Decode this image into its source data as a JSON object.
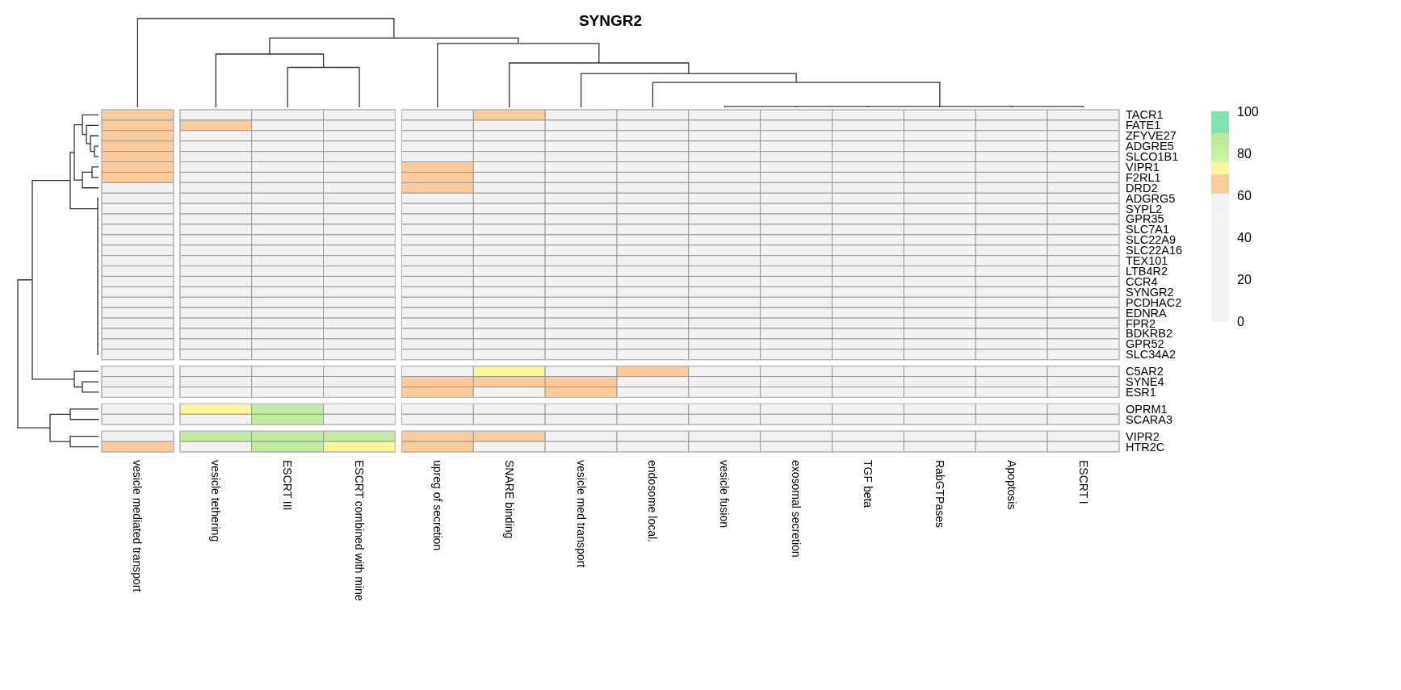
{
  "chart_data": {
    "type": "heatmap",
    "title": "SYNGR2",
    "categories": [
      "vesicle mediated transport",
      "vesicle tethering",
      "ESCRT III",
      "ESCRT combined with mine",
      "upreg of secretion",
      "SNARE binding",
      "vesicle med transport",
      "endosome local.",
      "vesicle fusion",
      "exosomal secretion",
      "TGF beta",
      "RabGTPases",
      "Apoptosis",
      "ESCRT I"
    ],
    "y_categories": [
      "TACR1",
      "FATE1",
      "ZFYVE27",
      "ADGRE5",
      "SLCO1B1",
      "VIPR1",
      "F2RL1",
      "DRD2",
      "ADGRG5",
      "SYPL2",
      "GPR35",
      "SLC7A1",
      "SLC22A9",
      "SLC22A16",
      "TEX101",
      "LTB4R2",
      "CCR4",
      "SYNGR2",
      "PCDHAC2",
      "EDNRA",
      "FPR2",
      "BDKRB2",
      "GPR52",
      "SLC34A2",
      "C5AR2",
      "SYNE4",
      "ESR1",
      "OPRM1",
      "SCARA3",
      "VIPR2",
      "HTR2C"
    ],
    "cells": [
      [
        65,
        null,
        null,
        null,
        null,
        65,
        null,
        null,
        null,
        null,
        null,
        null,
        null,
        null
      ],
      [
        65,
        65,
        null,
        null,
        null,
        null,
        null,
        null,
        null,
        null,
        null,
        null,
        null,
        null
      ],
      [
        65,
        null,
        null,
        null,
        null,
        null,
        null,
        null,
        null,
        null,
        null,
        null,
        null,
        null
      ],
      [
        65,
        null,
        null,
        null,
        null,
        null,
        null,
        null,
        null,
        null,
        null,
        null,
        null,
        null
      ],
      [
        65,
        null,
        null,
        null,
        null,
        null,
        null,
        null,
        null,
        null,
        null,
        null,
        null,
        null
      ],
      [
        65,
        null,
        null,
        null,
        65,
        null,
        null,
        null,
        null,
        null,
        null,
        null,
        null,
        null
      ],
      [
        65,
        null,
        null,
        null,
        65,
        null,
        null,
        null,
        null,
        null,
        null,
        null,
        null,
        null
      ],
      [
        null,
        null,
        null,
        null,
        65,
        null,
        null,
        null,
        null,
        null,
        null,
        null,
        null,
        null
      ],
      [
        null,
        null,
        null,
        null,
        null,
        null,
        null,
        null,
        null,
        null,
        null,
        null,
        null,
        null
      ],
      [
        null,
        null,
        null,
        null,
        null,
        null,
        null,
        null,
        null,
        null,
        null,
        null,
        null,
        null
      ],
      [
        null,
        null,
        null,
        null,
        null,
        null,
        null,
        null,
        null,
        null,
        null,
        null,
        null,
        null
      ],
      [
        null,
        null,
        null,
        null,
        null,
        null,
        null,
        null,
        null,
        null,
        null,
        null,
        null,
        null
      ],
      [
        null,
        null,
        null,
        null,
        null,
        null,
        null,
        null,
        null,
        null,
        null,
        null,
        null,
        null
      ],
      [
        null,
        null,
        null,
        null,
        null,
        null,
        null,
        null,
        null,
        null,
        null,
        null,
        null,
        null
      ],
      [
        null,
        null,
        null,
        null,
        null,
        null,
        null,
        null,
        null,
        null,
        null,
        null,
        null,
        null
      ],
      [
        null,
        null,
        null,
        null,
        null,
        null,
        null,
        null,
        null,
        null,
        null,
        null,
        null,
        null
      ],
      [
        null,
        null,
        null,
        null,
        null,
        null,
        null,
        null,
        null,
        null,
        null,
        null,
        null,
        null
      ],
      [
        null,
        null,
        null,
        null,
        null,
        null,
        null,
        null,
        null,
        null,
        null,
        null,
        null,
        null
      ],
      [
        null,
        null,
        null,
        null,
        null,
        null,
        null,
        null,
        null,
        null,
        null,
        null,
        null,
        null
      ],
      [
        null,
        null,
        null,
        null,
        null,
        null,
        null,
        null,
        null,
        null,
        null,
        null,
        null,
        null
      ],
      [
        null,
        null,
        null,
        null,
        null,
        null,
        null,
        null,
        null,
        null,
        null,
        null,
        null,
        null
      ],
      [
        null,
        null,
        null,
        null,
        null,
        null,
        null,
        null,
        null,
        null,
        null,
        null,
        null,
        null
      ],
      [
        null,
        null,
        null,
        null,
        null,
        null,
        null,
        null,
        null,
        null,
        null,
        null,
        null,
        null
      ],
      [
        null,
        null,
        null,
        null,
        null,
        null,
        null,
        null,
        null,
        null,
        null,
        null,
        null,
        null
      ],
      [
        null,
        null,
        null,
        null,
        null,
        72,
        null,
        65,
        null,
        null,
        null,
        null,
        null,
        null
      ],
      [
        null,
        null,
        null,
        null,
        65,
        65,
        65,
        null,
        null,
        null,
        null,
        null,
        null,
        null
      ],
      [
        null,
        null,
        null,
        null,
        65,
        null,
        65,
        null,
        null,
        null,
        null,
        null,
        null,
        null
      ],
      [
        null,
        72,
        83,
        null,
        null,
        null,
        null,
        null,
        null,
        null,
        null,
        null,
        null,
        null
      ],
      [
        null,
        null,
        83,
        null,
        null,
        null,
        null,
        null,
        null,
        null,
        null,
        null,
        null,
        null
      ],
      [
        null,
        83,
        83,
        83,
        65,
        65,
        null,
        null,
        null,
        null,
        null,
        null,
        null,
        null
      ],
      [
        65,
        null,
        83,
        72,
        65,
        null,
        null,
        null,
        null,
        null,
        null,
        null,
        null,
        null
      ]
    ],
    "clim": [
      0,
      100
    ],
    "cticks": [
      0,
      20,
      40,
      60,
      80,
      100
    ]
  }
}
